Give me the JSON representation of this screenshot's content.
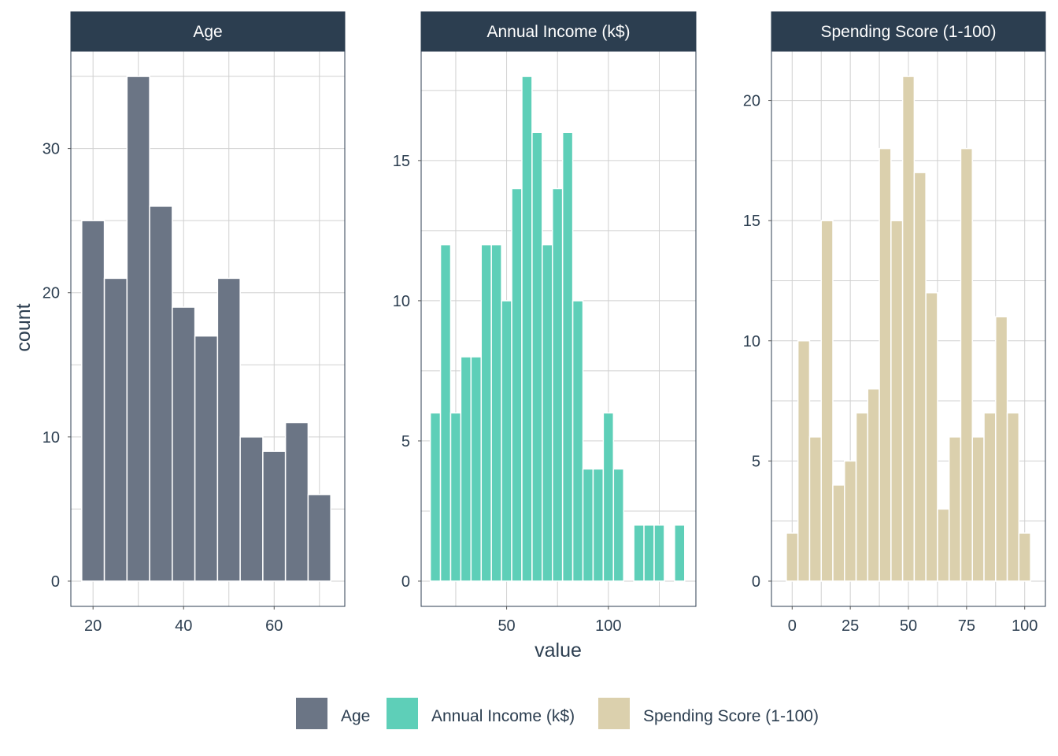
{
  "chart_data": {
    "type": "bar",
    "ylabel": "count",
    "xlabel": "value",
    "colors": {
      "strip_bg": "#2c3e50",
      "grid": "#d0d0d0",
      "panel_border": "#2c3e50"
    },
    "legend": {
      "position": "bottom",
      "entries": [
        {
          "label": "Age",
          "color": "#6b7585"
        },
        {
          "label": "Annual Income (k$)",
          "color": "#5ecfb8"
        },
        {
          "label": "Spending Score (1-100)",
          "color": "#dbd0ad"
        }
      ]
    },
    "panels": [
      {
        "title": "Age",
        "color": "#6b7585",
        "xlim": [
          15.1,
          75.6
        ],
        "ylim": [
          -1.75,
          36.75
        ],
        "xticks": [
          20,
          40,
          60
        ],
        "yticks": [
          0,
          10,
          20,
          30
        ],
        "bin_width": 5,
        "x": [
          20,
          25,
          30,
          35,
          40,
          45,
          50,
          55,
          60,
          65,
          70
        ],
        "values": [
          25,
          21,
          35,
          26,
          19,
          17,
          21,
          10,
          9,
          11,
          6
        ]
      },
      {
        "title": "Annual Income (k$)",
        "color": "#5ecfb8",
        "xlim": [
          8,
          143
        ],
        "ylim": [
          -0.9,
          18.9
        ],
        "xticks": [
          50,
          100
        ],
        "yticks": [
          0,
          5,
          10,
          15
        ],
        "bin_width": 5,
        "x": [
          15,
          20,
          25,
          30,
          35,
          40,
          45,
          50,
          55,
          60,
          65,
          70,
          75,
          80,
          85,
          90,
          95,
          100,
          105,
          110,
          115,
          120,
          125,
          130,
          135
        ],
        "values": [
          6,
          12,
          6,
          8,
          8,
          12,
          12,
          10,
          14,
          18,
          16,
          12,
          14,
          16,
          10,
          4,
          4,
          6,
          4,
          0,
          2,
          2,
          2,
          0,
          2
        ]
      },
      {
        "title": "Spending Score (1-100)",
        "color": "#dbd0ad",
        "xlim": [
          -8.9,
          108.9
        ],
        "ylim": [
          -1.05,
          22.05
        ],
        "xticks": [
          0,
          25,
          50,
          75,
          100
        ],
        "yticks": [
          0,
          5,
          10,
          15,
          20
        ],
        "bin_width": 5,
        "x": [
          0,
          5,
          10,
          15,
          20,
          25,
          30,
          35,
          40,
          45,
          50,
          55,
          60,
          65,
          70,
          75,
          80,
          85,
          90,
          95,
          100
        ],
        "values": [
          2,
          10,
          6,
          15,
          4,
          5,
          7,
          8,
          18,
          15,
          21,
          17,
          12,
          3,
          6,
          18,
          6,
          7,
          11,
          7,
          2
        ]
      }
    ]
  }
}
